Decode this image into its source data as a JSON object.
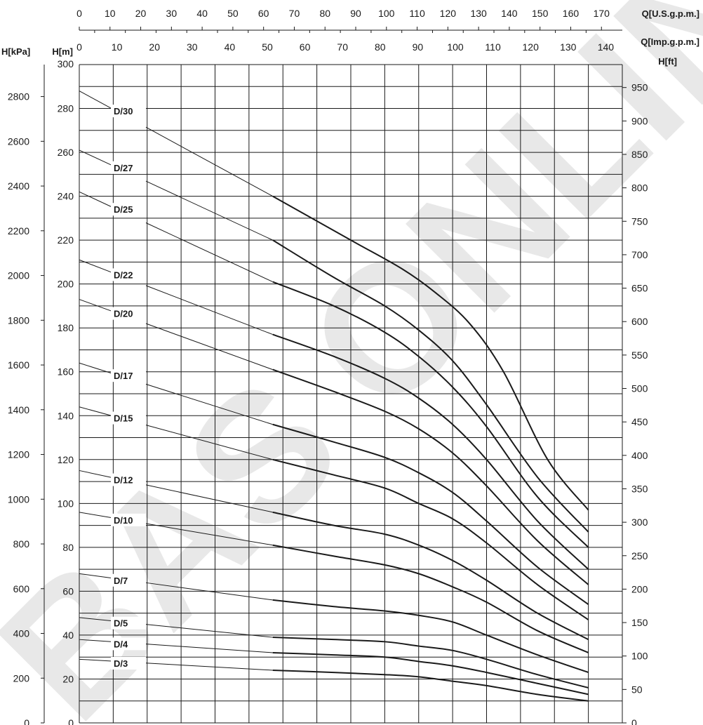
{
  "watermark": "BAS ONLINE",
  "chart_data": {
    "type": "line",
    "axes": {
      "x_top1": {
        "label": "Q[U.S.g.p.m.]",
        "ticks": [
          "0",
          "10",
          "20",
          "30",
          "40",
          "50",
          "60",
          "70",
          "80",
          "90",
          "100",
          "110",
          "120",
          "130",
          "140",
          "150",
          "160",
          "170"
        ],
        "range": [
          0,
          170
        ]
      },
      "x_top2": {
        "label": "Q[Imp.g.p.m.]",
        "ticks": [
          "0",
          "10",
          "20",
          "30",
          "40",
          "50",
          "60",
          "70",
          "80",
          "90",
          "100",
          "110",
          "120",
          "130",
          "140"
        ],
        "range": [
          0,
          140
        ]
      },
      "y_left_m": {
        "label": "H[m]",
        "ticks": [
          "0",
          "20",
          "40",
          "60",
          "80",
          "100",
          "120",
          "140",
          "160",
          "180",
          "200",
          "220",
          "240",
          "260",
          "280",
          "300"
        ],
        "range": [
          0,
          300
        ]
      },
      "y_left_kpa": {
        "label": "H[kPa]",
        "ticks": [
          "0",
          "200",
          "400",
          "600",
          "800",
          "1000",
          "1200",
          "1400",
          "1600",
          "1800",
          "2000",
          "2200",
          "2400",
          "2600",
          "2800"
        ]
      },
      "y_right_ft": {
        "label": "H[ft]",
        "ticks": [
          "0",
          "50",
          "100",
          "150",
          "200",
          "250",
          "300",
          "350",
          "400",
          "450",
          "500",
          "550",
          "600",
          "650",
          "700",
          "750",
          "800",
          "850",
          "900",
          "950"
        ]
      }
    },
    "x_unit_note": "series x values in U.S.g.p.m.",
    "grid": true,
    "series": [
      {
        "name": "D/30",
        "x": [
          0,
          57,
          80,
          95,
          105,
          115,
          125,
          138,
          150
        ],
        "y": [
          288,
          240,
          220,
          207,
          196,
          182,
          160,
          120,
          97
        ]
      },
      {
        "name": "D/27",
        "x": [
          0,
          57,
          75,
          90,
          100,
          110,
          120,
          135,
          150
        ],
        "y": [
          261,
          220,
          203,
          190,
          179,
          165,
          145,
          112,
          87
        ]
      },
      {
        "name": "D/25",
        "x": [
          0,
          57,
          75,
          90,
          100,
          110,
          120,
          135,
          150
        ],
        "y": [
          242,
          201,
          190,
          178,
          167,
          153,
          135,
          103,
          80
        ]
      },
      {
        "name": "D/22",
        "x": [
          0,
          57,
          75,
          90,
          100,
          110,
          120,
          135,
          150
        ],
        "y": [
          211,
          177,
          167,
          157,
          148,
          136,
          120,
          92,
          70
        ]
      },
      {
        "name": "D/20",
        "x": [
          0,
          57,
          75,
          90,
          100,
          110,
          120,
          135,
          150
        ],
        "y": [
          193,
          161,
          151,
          142,
          134,
          123,
          108,
          83,
          63
        ]
      },
      {
        "name": "D/17",
        "x": [
          0,
          57,
          75,
          90,
          100,
          110,
          120,
          135,
          150
        ],
        "y": [
          164,
          136,
          128,
          121,
          114,
          105,
          92,
          71,
          54
        ]
      },
      {
        "name": "D/15",
        "x": [
          0,
          57,
          75,
          90,
          100,
          110,
          120,
          135,
          150
        ],
        "y": [
          144,
          120,
          113,
          107,
          100,
          93,
          82,
          63,
          47
        ]
      },
      {
        "name": "D/12",
        "x": [
          0,
          57,
          75,
          90,
          100,
          110,
          120,
          135,
          150
        ],
        "y": [
          115,
          96,
          90,
          86,
          81,
          74,
          65,
          50,
          38
        ]
      },
      {
        "name": "D/10",
        "x": [
          0,
          57,
          75,
          90,
          100,
          110,
          120,
          135,
          150
        ],
        "y": [
          96,
          81,
          76,
          72,
          68,
          62,
          55,
          42,
          32
        ]
      },
      {
        "name": "D/7",
        "x": [
          0,
          57,
          75,
          90,
          100,
          110,
          120,
          135,
          150
        ],
        "y": [
          68,
          56,
          53,
          51,
          49,
          46,
          40,
          31,
          23
        ]
      },
      {
        "name": "D/5",
        "x": [
          0,
          57,
          75,
          90,
          100,
          110,
          120,
          135,
          150
        ],
        "y": [
          48,
          39,
          38,
          37,
          35,
          33,
          29,
          22,
          16
        ]
      },
      {
        "name": "D/4",
        "x": [
          0,
          57,
          75,
          90,
          100,
          110,
          120,
          135,
          150
        ],
        "y": [
          38,
          32,
          31,
          30,
          28,
          26,
          23,
          18,
          13
        ]
      },
      {
        "name": "D/3",
        "x": [
          0,
          57,
          75,
          90,
          100,
          110,
          120,
          135,
          150
        ],
        "y": [
          29,
          24,
          23,
          22,
          21,
          19,
          17,
          13,
          10
        ]
      }
    ]
  }
}
